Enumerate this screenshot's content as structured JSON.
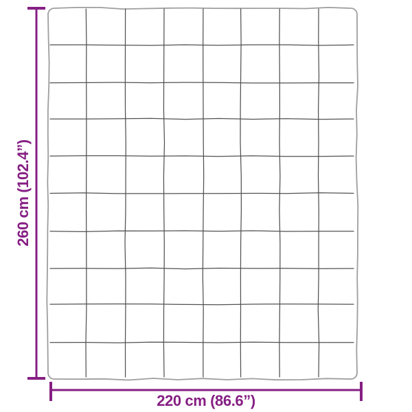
{
  "diagram": {
    "subject": "blanket with quilted square grid pattern, top view with dimensions",
    "height_label": "260 cm (102.4”)",
    "width_label": "220 cm (86.6”)",
    "grid": {
      "columns": 8,
      "rows": 10
    },
    "colors": {
      "dimension": "#861f83",
      "outline": "#9e9e9e",
      "grid_line": "#515151",
      "background": "#ffffff"
    }
  }
}
